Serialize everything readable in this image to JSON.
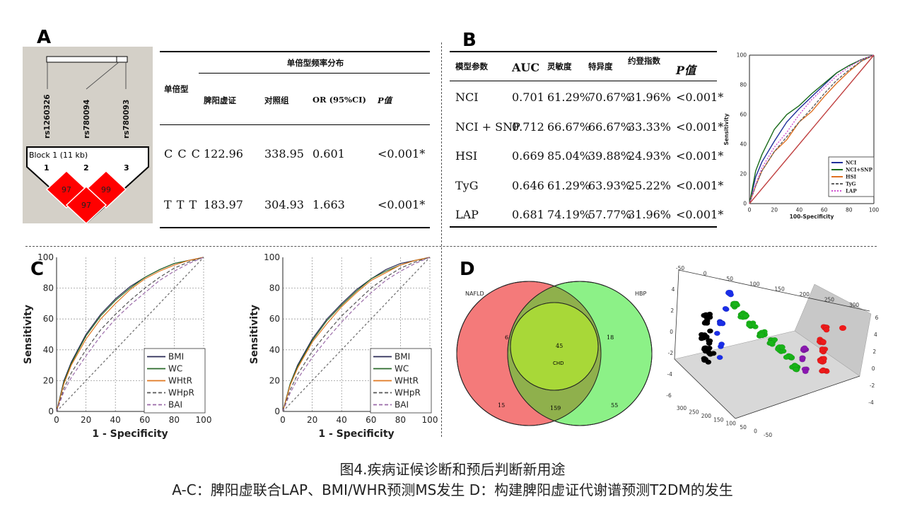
{
  "panels": {
    "a": "A",
    "b": "B",
    "c": "C",
    "d": "D"
  },
  "ld_plot": {
    "snps": [
      "rs1260326",
      "rs780094",
      "rs780093"
    ],
    "block_label": "Block 1 (11 kb)",
    "marker_numbers": [
      "1",
      "2",
      "3"
    ],
    "ld_values": [
      "97",
      "99",
      "97"
    ],
    "colors": {
      "background": "#d4d0c8",
      "cell": "#ff0000"
    }
  },
  "haplotype_table": {
    "header_group": "单倍型频率分布",
    "header_row_label": "单倍型",
    "columns": [
      "脾阳虚证",
      "对照组",
      "OR (95%CI)",
      "P值"
    ],
    "rows": [
      {
        "label": "C C C",
        "cells": [
          "122.96",
          "338.95",
          "0.601",
          "<0.001*"
        ]
      },
      {
        "label": "T T T",
        "cells": [
          "183.97",
          "304.93",
          "1.663",
          "<0.001*"
        ]
      }
    ]
  },
  "model_table": {
    "columns": [
      "模型参数",
      "AUC",
      "灵敏度",
      "特异度",
      "约登指数",
      "P值"
    ],
    "rows": [
      [
        "NCI",
        "0.701",
        "61.29%",
        "70.67%",
        "31.96%",
        "<0.001*"
      ],
      [
        "NCI + SNP",
        "0.712",
        "66.67%",
        "66.67%",
        "33.33%",
        "<0.001*"
      ],
      [
        "HSI",
        "0.669",
        "85.04%",
        "39.88%",
        "24.93%",
        "<0.001*"
      ],
      [
        "TyG",
        "0.646",
        "61.29%",
        "63.93%",
        "25.22%",
        "<0.001*"
      ],
      [
        "LAP",
        "0.681",
        "74.19%",
        "57.77%",
        "31.96%",
        "<0.001*"
      ]
    ]
  },
  "chart_data": [
    {
      "id": "roc_b",
      "type": "line",
      "title": "",
      "xlabel": "100-Specificity",
      "ylabel": "Sensitivity",
      "xlim": [
        0,
        100
      ],
      "ylim": [
        0,
        100
      ],
      "ticks": [
        "0",
        "20",
        "40",
        "60",
        "80",
        "100"
      ],
      "legend": "bottom-right",
      "series": [
        {
          "name": "NCI",
          "color": "#1f2f9a",
          "dash": "",
          "x": [
            0,
            5,
            10,
            20,
            30,
            40,
            50,
            60,
            70,
            80,
            90,
            100
          ],
          "y": [
            0,
            18,
            28,
            42,
            55,
            64,
            72,
            80,
            88,
            93,
            97,
            100
          ]
        },
        {
          "name": "NCI+SNP",
          "color": "#1a6b1a",
          "dash": "",
          "x": [
            0,
            5,
            10,
            20,
            30,
            40,
            50,
            60,
            70,
            80,
            90,
            100
          ],
          "y": [
            0,
            22,
            33,
            50,
            60,
            66,
            74,
            81,
            88,
            93,
            97,
            100
          ]
        },
        {
          "name": "HSI",
          "color": "#e07020",
          "dash": "",
          "x": [
            0,
            5,
            10,
            20,
            30,
            40,
            50,
            60,
            70,
            80,
            90,
            100
          ],
          "y": [
            0,
            12,
            22,
            35,
            43,
            55,
            62,
            72,
            81,
            89,
            96,
            100
          ]
        },
        {
          "name": "TyG",
          "color": "#606060",
          "dash": "4,2",
          "x": [
            0,
            5,
            10,
            20,
            30,
            40,
            50,
            60,
            70,
            80,
            90,
            100
          ],
          "y": [
            0,
            12,
            22,
            35,
            45,
            55,
            64,
            74,
            83,
            90,
            96,
            100
          ]
        },
        {
          "name": "LAP",
          "color": "#d050d0",
          "dash": "2,2",
          "x": [
            0,
            5,
            10,
            20,
            30,
            40,
            50,
            60,
            70,
            80,
            90,
            100
          ],
          "y": [
            0,
            13,
            24,
            38,
            48,
            60,
            70,
            78,
            86,
            92,
            97,
            100
          ]
        },
        {
          "name": "reference",
          "color": "#c04040",
          "dash": "",
          "x": [
            0,
            100
          ],
          "y": [
            0,
            100
          ]
        }
      ]
    },
    {
      "id": "roc_c1",
      "type": "line",
      "xlabel": "1 - Specificity",
      "ylabel": "Sensitivity",
      "xlim": [
        0,
        100
      ],
      "ylim": [
        0,
        100
      ],
      "ticks": [
        "0",
        "20",
        "40",
        "60",
        "80",
        "100"
      ],
      "legend": "bottom-right",
      "series": [
        {
          "name": "BMI",
          "color": "#2a2a55",
          "dash": "",
          "x": [
            0,
            5,
            10,
            20,
            30,
            40,
            50,
            60,
            70,
            80,
            90,
            100
          ],
          "y": [
            0,
            20,
            32,
            50,
            63,
            73,
            81,
            87,
            92,
            96,
            98,
            100
          ]
        },
        {
          "name": "WC",
          "color": "#2a6a2a",
          "dash": "",
          "x": [
            0,
            5,
            10,
            20,
            30,
            40,
            50,
            60,
            70,
            80,
            90,
            100
          ],
          "y": [
            0,
            19,
            31,
            49,
            62,
            72,
            80,
            87,
            92,
            96,
            98,
            100
          ]
        },
        {
          "name": "WHtR",
          "color": "#e07820",
          "dash": "",
          "x": [
            0,
            5,
            10,
            20,
            30,
            40,
            50,
            60,
            70,
            80,
            90,
            100
          ],
          "y": [
            0,
            18,
            30,
            47,
            60,
            70,
            79,
            86,
            91,
            95,
            98,
            100
          ]
        },
        {
          "name": "WHpR",
          "color": "#555555",
          "dash": "5,3",
          "x": [
            0,
            5,
            10,
            20,
            30,
            40,
            50,
            60,
            70,
            80,
            90,
            100
          ],
          "y": [
            0,
            15,
            25,
            40,
            53,
            63,
            72,
            80,
            87,
            93,
            97,
            100
          ]
        },
        {
          "name": "BAI",
          "color": "#9a6aa8",
          "dash": "5,3",
          "x": [
            0,
            5,
            10,
            20,
            30,
            40,
            50,
            60,
            70,
            80,
            90,
            100
          ],
          "y": [
            0,
            13,
            22,
            36,
            49,
            60,
            69,
            77,
            85,
            91,
            96,
            100
          ]
        },
        {
          "name": "reference",
          "color": "#666666",
          "dash": "3,3",
          "x": [
            0,
            100
          ],
          "y": [
            0,
            100
          ]
        }
      ]
    },
    {
      "id": "roc_c2",
      "type": "line",
      "xlabel": "1 - Specificity",
      "ylabel": "Sensitivity",
      "xlim": [
        0,
        100
      ],
      "ylim": [
        0,
        100
      ],
      "ticks": [
        "0",
        "20",
        "40",
        "60",
        "80",
        "100"
      ],
      "legend": "bottom-right",
      "series": [
        {
          "name": "BMI",
          "color": "#2a2a55",
          "dash": "",
          "x": [
            0,
            5,
            10,
            20,
            30,
            40,
            50,
            60,
            70,
            80,
            90,
            100
          ],
          "y": [
            0,
            18,
            30,
            47,
            60,
            70,
            79,
            86,
            92,
            96,
            98,
            100
          ]
        },
        {
          "name": "WC",
          "color": "#2a6a2a",
          "dash": "",
          "x": [
            0,
            5,
            10,
            20,
            30,
            40,
            50,
            60,
            70,
            80,
            90,
            100
          ],
          "y": [
            0,
            18,
            29,
            46,
            59,
            69,
            78,
            86,
            91,
            95,
            98,
            100
          ]
        },
        {
          "name": "WHtR",
          "color": "#e07820",
          "dash": "",
          "x": [
            0,
            5,
            10,
            20,
            30,
            40,
            50,
            60,
            70,
            80,
            90,
            100
          ],
          "y": [
            0,
            17,
            28,
            45,
            57,
            68,
            77,
            85,
            90,
            95,
            98,
            100
          ]
        },
        {
          "name": "WHpR",
          "color": "#555555",
          "dash": "5,3",
          "x": [
            0,
            5,
            10,
            20,
            30,
            40,
            50,
            60,
            70,
            80,
            90,
            100
          ],
          "y": [
            0,
            14,
            24,
            39,
            51,
            62,
            71,
            80,
            87,
            93,
            97,
            100
          ]
        },
        {
          "name": "BAI",
          "color": "#9a6aa8",
          "dash": "5,3",
          "x": [
            0,
            5,
            10,
            20,
            30,
            40,
            50,
            60,
            70,
            80,
            90,
            100
          ],
          "y": [
            0,
            12,
            21,
            35,
            47,
            58,
            68,
            77,
            85,
            91,
            96,
            100
          ]
        },
        {
          "name": "reference",
          "color": "#666666",
          "dash": "3,3",
          "x": [
            0,
            100
          ],
          "y": [
            0,
            100
          ]
        }
      ]
    }
  ],
  "venn": {
    "sets": [
      "NAFLD",
      "HBP",
      "CHD"
    ],
    "regions": {
      "nafld_only": "15",
      "hbp_only": "55",
      "chd_only": "CHD",
      "nafld_chd": "6",
      "hbp_chd": "18",
      "nafld_hbp": "159",
      "all": "45"
    },
    "colors": {
      "nafld": "#f47a7a",
      "hbp": "#7ff07a",
      "chd": "#f0ee6a"
    }
  },
  "scatter3d": {
    "tick_labels_top": [
      "-50",
      "0",
      "50",
      "100",
      "150",
      "200",
      "250",
      "300"
    ],
    "tick_labels_left": [
      "4",
      "2",
      "0",
      "-2",
      "-4",
      "-6"
    ],
    "tick_labels_bottom": [
      "300",
      "250",
      "200",
      "150",
      "100",
      "50",
      "0",
      "-50"
    ],
    "tick_labels_right": [
      "6",
      "4",
      "2",
      "0",
      "-2",
      "-4"
    ],
    "cluster_colors": [
      "#000000",
      "#1a2ee8",
      "#18b418",
      "#8a18b0",
      "#ee1a1a"
    ]
  },
  "caption": {
    "line1": "图4.疾病证候诊断和预后判断新用途",
    "line2": "A-C：脾阳虚联合LAP、BMI/WHR预测MS发生   D：构建脾阳虚证代谢谱预测T2DM的发生"
  }
}
